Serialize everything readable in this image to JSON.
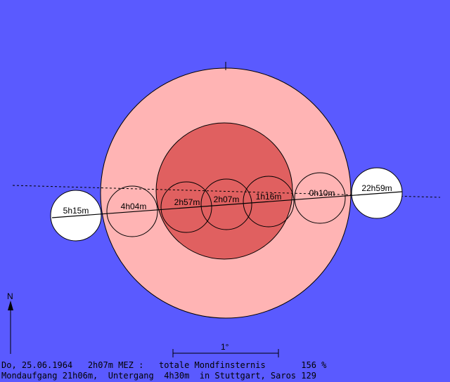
{
  "colors": {
    "background": "#5a5aff",
    "penumbra": "#ffb4b4",
    "umbra": "#e06060",
    "moon": "#ffffff",
    "outline": "#000000"
  },
  "eclipse": {
    "positions": [
      {
        "label": "5h15m",
        "style": "outside"
      },
      {
        "label": "4h04m",
        "style": "inside"
      },
      {
        "label": "2h57m",
        "style": "inside"
      },
      {
        "label": "2h07m",
        "style": "inside"
      },
      {
        "label": "1h16m",
        "style": "inside"
      },
      {
        "label": "0h10m",
        "style": "inside"
      },
      {
        "label": "22h59m",
        "style": "outside"
      }
    ]
  },
  "scale_label": "1°",
  "north_label": "N",
  "info": {
    "line1": "Do, 25.06.1964   2h07m MEZ :   totale Mondfinsternis       156 %",
    "line2": "Mondaufgang 21h06m,  Untergang  4h30m  in Stuttgart, Saros 129"
  }
}
